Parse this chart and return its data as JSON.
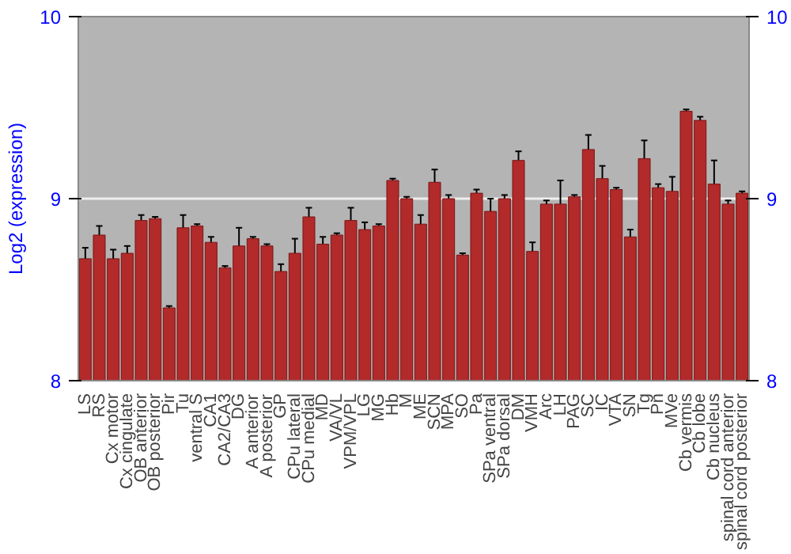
{
  "chart_data": {
    "type": "bar",
    "ylabel": "Log2 (expression)",
    "color": "#b22a2a",
    "categories": [
      "LS",
      "RS",
      "Cx motor",
      "Cx cingulate",
      "OB anterior",
      "OB posterior",
      "Pir",
      "Tu",
      "ventral S",
      "CA1",
      "CA2/CA3",
      "DG",
      "A anterior",
      "A posterior",
      "GP",
      "CPu lateral",
      "CPu medial",
      "MD",
      "VA/VL",
      "VPM/VPL",
      "LG",
      "MG",
      "Hb",
      "M",
      "ME",
      "SCN",
      "MPA",
      "SO",
      "Pa",
      "SPa ventral",
      "SPa dorsal",
      "DM",
      "VMH",
      "Arc",
      "LH",
      "PAG",
      "SC",
      "IC",
      "VTA",
      "SN",
      "Tg",
      "Pn",
      "MVe",
      "Cb vermis",
      "Cb lobe",
      "Cb nucleus",
      "spinal cord anterior",
      "spinal cord posterior"
    ],
    "values": [
      8.67,
      8.8,
      8.67,
      8.7,
      8.88,
      8.89,
      8.4,
      8.84,
      8.85,
      8.76,
      8.62,
      8.74,
      8.78,
      8.74,
      8.6,
      8.7,
      8.9,
      8.75,
      8.8,
      8.88,
      8.83,
      8.85,
      9.1,
      9.0,
      8.86,
      9.09,
      9.0,
      8.69,
      9.03,
      8.93,
      9.0,
      9.21,
      8.71,
      8.97,
      8.97,
      9.01,
      9.27,
      9.11,
      9.05,
      8.79,
      9.22,
      9.06,
      9.04,
      9.48,
      9.43,
      9.08,
      8.97,
      9.03
    ],
    "errors": [
      0.06,
      0.05,
      0.05,
      0.04,
      0.03,
      0.01,
      0.01,
      0.07,
      0.01,
      0.03,
      0.01,
      0.1,
      0.01,
      0.01,
      0.04,
      0.08,
      0.05,
      0.04,
      0.01,
      0.07,
      0.04,
      0.01,
      0.01,
      0.01,
      0.05,
      0.07,
      0.02,
      0.01,
      0.02,
      0.07,
      0.02,
      0.05,
      0.05,
      0.02,
      0.13,
      0.01,
      0.08,
      0.07,
      0.01,
      0.04,
      0.1,
      0.02,
      0.08,
      0.01,
      0.02,
      0.13,
      0.02,
      0.01
    ],
    "ylim": [
      8,
      10
    ],
    "yticks": [
      8,
      9,
      10
    ],
    "y2lim": [
      8,
      10
    ],
    "y2ticks": [
      8,
      9,
      10
    ],
    "grid": "y"
  }
}
